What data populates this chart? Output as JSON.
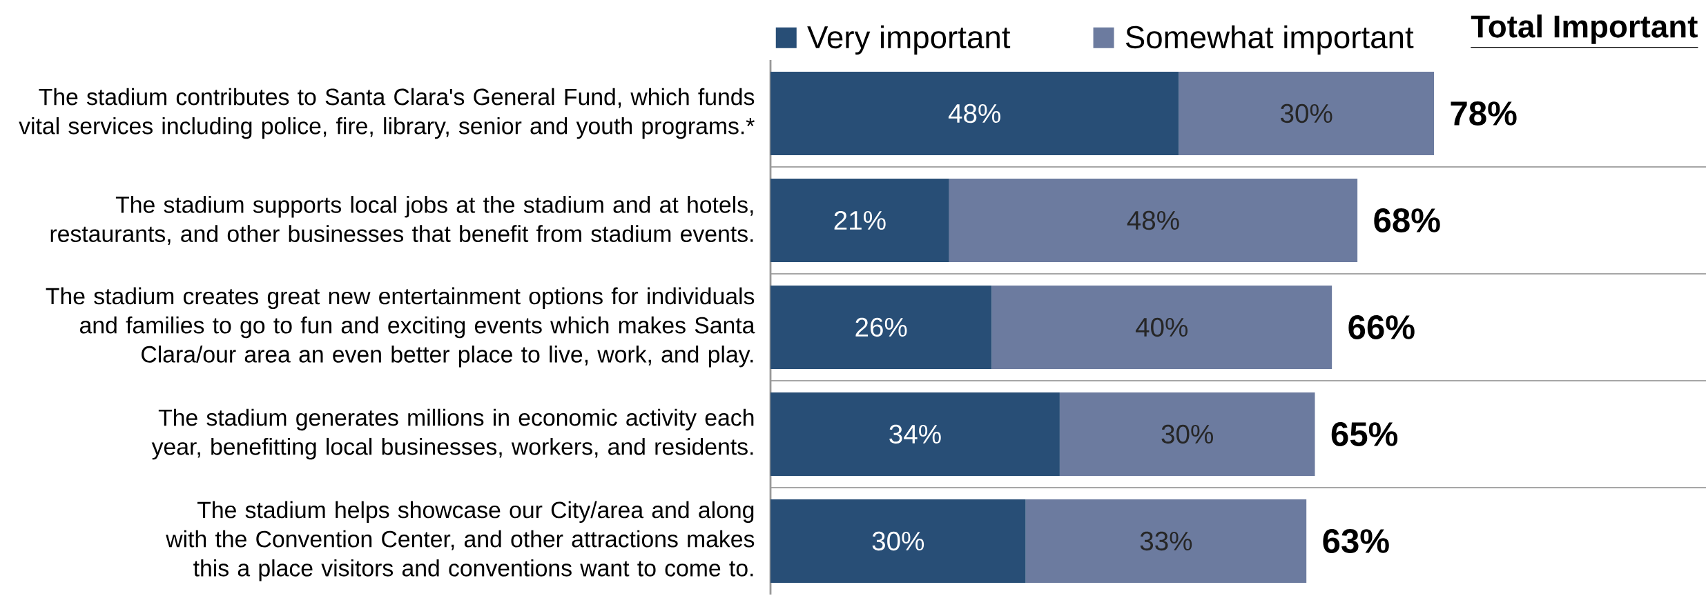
{
  "chart_data": {
    "type": "bar",
    "orientation": "horizontal",
    "stacked": true,
    "categories": [
      "The stadium contributes to Santa Clara's General Fund, which funds vital services including police, fire, library, senior and youth programs.*",
      "The stadium supports local jobs at the stadium and at hotels, restaurants, and other businesses that benefit from stadium events.",
      "The stadium creates great new entertainment options for individuals and families to go to fun and exciting events which makes Santa Clara/our area an even better place to live, work, and play.",
      "The stadium generates millions in economic activity each year, benefitting local businesses, workers, and residents.",
      "The stadium helps showcase our City/area and along with the Convention Center, and other attractions makes this a place visitors and conventions want to come to."
    ],
    "series": [
      {
        "name": "Very important",
        "color": "#284e76",
        "values": [
          48,
          21,
          26,
          34,
          30
        ],
        "value_labels": [
          "48%",
          "21%",
          "26%",
          "34%",
          "30%"
        ]
      },
      {
        "name": "Somewhat important",
        "color": "#6c7b9f",
        "values": [
          30,
          48,
          40,
          30,
          33
        ],
        "value_labels": [
          "30%",
          "48%",
          "40%",
          "30%",
          "33%"
        ]
      }
    ],
    "totals": [
      "78%",
      "68%",
      "66%",
      "65%",
      "63%"
    ],
    "annotations": [
      "Total Important"
    ],
    "tick_labels": "y",
    "grid": "y",
    "legend": "top"
  }
}
